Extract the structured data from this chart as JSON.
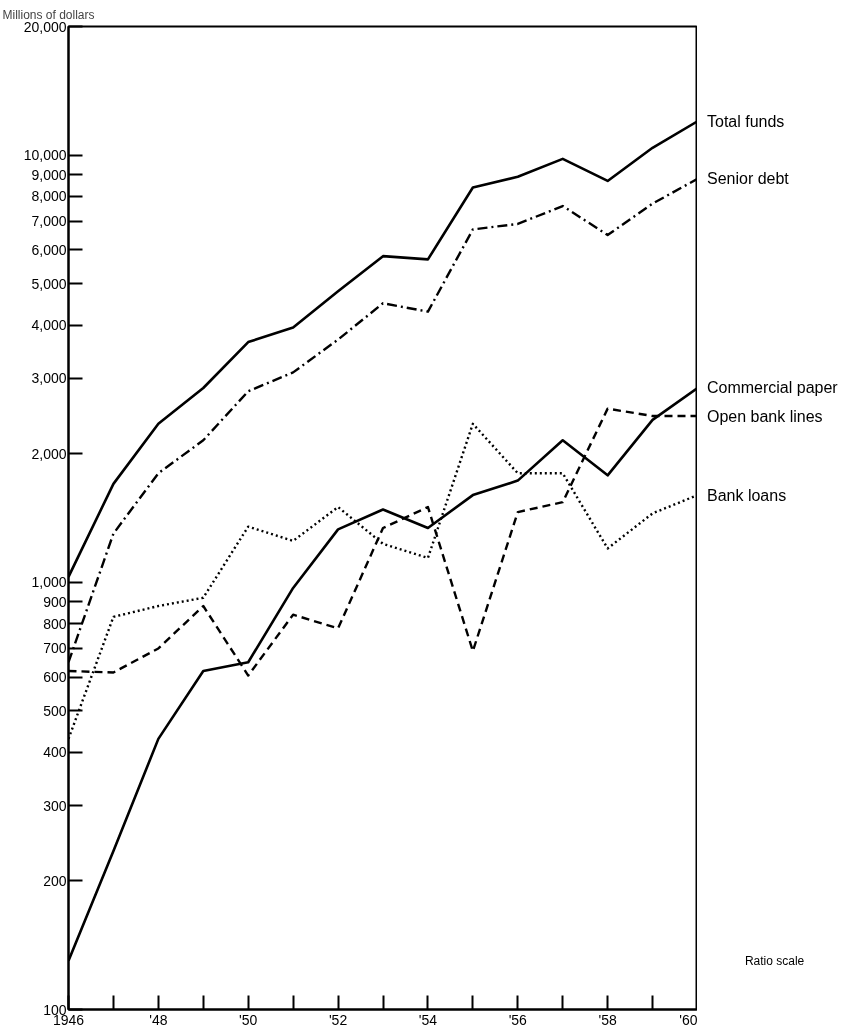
{
  "chart_data": {
    "type": "line",
    "ylabel": "Millions of dollars",
    "x": [
      1946,
      1947,
      1948,
      1949,
      1950,
      1951,
      1952,
      1953,
      1954,
      1955,
      1956,
      1957,
      1958,
      1959,
      1960
    ],
    "series": [
      {
        "name": "Total funds",
        "color": "#000000",
        "line_style": "solid",
        "values": [
          1030,
          1700,
          2350,
          2850,
          3650,
          3950,
          4800,
          5800,
          5700,
          8400,
          8900,
          9800,
          8700,
          10400,
          12000
        ]
      },
      {
        "name": "Senior debt",
        "color": "#000000",
        "line_style": "dashdot",
        "values": [
          650,
          1300,
          1800,
          2150,
          2800,
          3100,
          3700,
          4500,
          4300,
          6700,
          6900,
          7600,
          6500,
          7700,
          8800
        ]
      },
      {
        "name": "Commercial paper",
        "color": "#000000",
        "line_style": "solid",
        "values": [
          130,
          235,
          430,
          620,
          650,
          970,
          1330,
          1480,
          1340,
          1600,
          1730,
          2150,
          1780,
          2400,
          2850
        ]
      },
      {
        "name": "Open bank lines",
        "color": "#000000",
        "line_style": "dashed",
        "values": [
          620,
          615,
          700,
          880,
          605,
          840,
          780,
          1340,
          1500,
          690,
          1460,
          1540,
          2550,
          2450,
          2450
        ]
      },
      {
        "name": "Bank loans",
        "color": "#000000",
        "line_style": "dotted",
        "values": [
          430,
          830,
          880,
          920,
          1350,
          1250,
          1500,
          1230,
          1140,
          2350,
          1800,
          1800,
          1200,
          1450,
          1600
        ]
      }
    ],
    "log": "y",
    "ylim": [
      100,
      20000
    ],
    "yticks": [
      100,
      200,
      300,
      400,
      500,
      600,
      700,
      800,
      900,
      {
        "value": 1000,
        "label": "1,000"
      },
      {
        "value": 2000,
        "label": "2,000"
      },
      {
        "value": 3000,
        "label": "3,000"
      },
      {
        "value": 4000,
        "label": "4,000"
      },
      {
        "value": 5000,
        "label": "5,000"
      },
      {
        "value": 6000,
        "label": "6,000"
      },
      {
        "value": 7000,
        "label": "7,000"
      },
      {
        "value": 8000,
        "label": "8,000"
      },
      {
        "value": 9000,
        "label": "9,000"
      },
      {
        "value": 10000,
        "label": "10,000"
      },
      {
        "value": 20000,
        "label": "20,000"
      }
    ],
    "xlim": [
      1946,
      1960
    ],
    "xticks": [
      1946,
      {
        "value": 1947,
        "label": null
      },
      {
        "value": 1948,
        "label": "'48"
      },
      {
        "value": 1949,
        "label": null
      },
      {
        "value": 1950,
        "label": "'50"
      },
      {
        "value": 1951,
        "label": null
      },
      {
        "value": 1952,
        "label": "'52"
      },
      {
        "value": 1953,
        "label": null
      },
      {
        "value": 1954,
        "label": "'54"
      },
      {
        "value": 1955,
        "label": null
      },
      {
        "value": 1956,
        "label": "'56"
      },
      {
        "value": 1957,
        "label": null
      },
      {
        "value": 1958,
        "label": "'58"
      },
      {
        "value": 1959,
        "label": null
      },
      {
        "value": 1960,
        "label": "'60"
      }
    ],
    "grid": false,
    "legend": false,
    "marker": "none",
    "annotations": [
      "Ratio scale"
    ]
  }
}
